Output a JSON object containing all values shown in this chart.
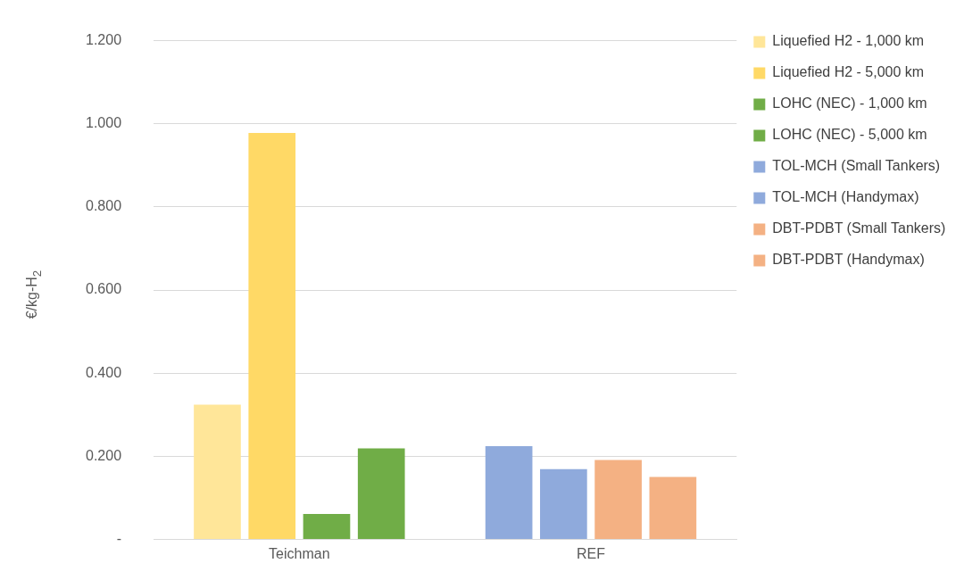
{
  "chart_data": {
    "type": "bar",
    "ylabel": "€/kg-H$_{2}$",
    "categories": [
      "Teichman",
      "REF"
    ],
    "series": [
      {
        "name": "Liquefied H2 - 1,000 km",
        "color": "#ffe699",
        "values": [
          0.324,
          null
        ]
      },
      {
        "name": "Liquefied H2 - 5,000 km",
        "color": "#ffd966",
        "values": [
          0.978,
          null
        ]
      },
      {
        "name": "LOHC (NEC) - 1,000 km",
        "color": "#70ad47",
        "values": [
          0.061,
          null
        ]
      },
      {
        "name": "LOHC (NEC) - 5,000 km",
        "color": "#70ad47",
        "values": [
          0.219,
          null
        ]
      },
      {
        "name": "TOL-MCH (Small Tankers)",
        "color": "#8faadc",
        "values": [
          null,
          0.224
        ]
      },
      {
        "name": "TOL-MCH (Handymax)",
        "color": "#8faadc",
        "values": [
          null,
          0.169
        ]
      },
      {
        "name": "DBT-PDBT (Small Tankers)",
        "color": "#f4b183",
        "values": [
          null,
          0.191
        ]
      },
      {
        "name": "DBT-PDBT (Handymax)",
        "color": "#f4b183",
        "values": [
          null,
          0.15
        ]
      }
    ],
    "ylim": [
      0,
      1.2
    ],
    "yticks": [
      {
        "value": 0,
        "label": "-"
      },
      {
        "value": 0.2,
        "label": "0.200"
      },
      {
        "value": 0.4,
        "label": "0.400"
      },
      {
        "value": 0.6,
        "label": "0.600"
      },
      {
        "value": 0.8,
        "label": "0.800"
      },
      {
        "value": 1.0,
        "label": "1.000"
      },
      {
        "value": 1.2,
        "label": "1.200"
      }
    ],
    "grid": "y",
    "legend": "right"
  }
}
